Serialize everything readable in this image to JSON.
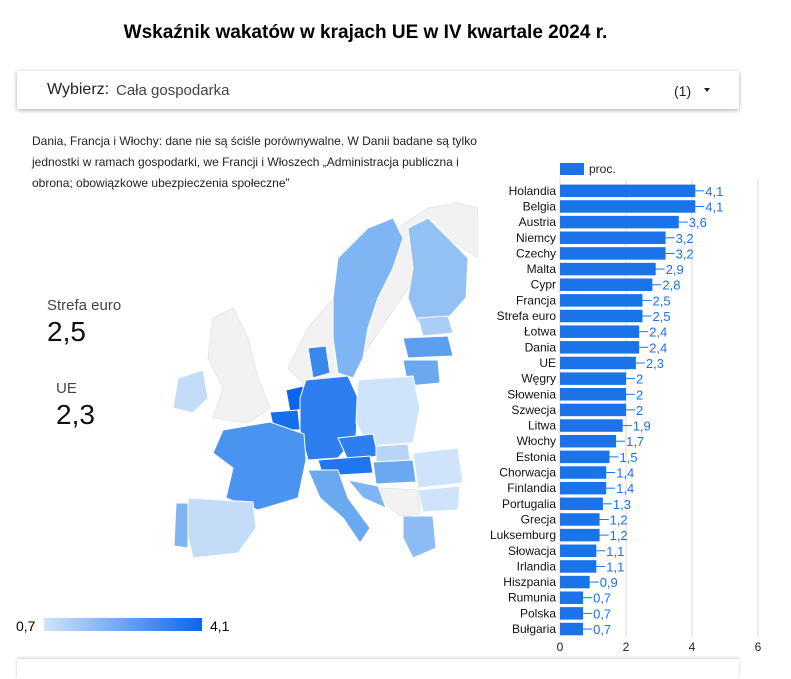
{
  "header": {
    "title": "Wskaźnik wakatów w krajach UE w IV kwartale 2024 r."
  },
  "filter": {
    "label": "Wybierz:",
    "value": "Cała gospodarka",
    "count": "(1)"
  },
  "note": "Dania, Francja i Włochy: dane nie są ściśle porównywalne. W Danii badane są tylko jednostki w ramach gospodarki, we Francji i Włoszech „Administracja publiczna i obrona; obowiązkowe ubezpieczenia społeczne”",
  "kpis": {
    "eurozone": {
      "label": "Strefa euro",
      "value": "2,5"
    },
    "eu": {
      "label": "UE",
      "value": "2,3"
    }
  },
  "map_legend": {
    "min": "0,7",
    "max": "4,1"
  },
  "colors": {
    "bar": "#1a73e8",
    "label": "#1a73e8",
    "legend_low": "#cfe4fb",
    "legend_high": "#0a66ee"
  },
  "chart_data": {
    "type": "bar",
    "orientation": "horizontal",
    "legend": "proc.",
    "categories": [
      "Holandia",
      "Belgia",
      "Austria",
      "Niemcy",
      "Czechy",
      "Malta",
      "Cypr",
      "Francja",
      "Strefa euro",
      "Łotwa",
      "Dania",
      "UE",
      "Węgry",
      "Słowenia",
      "Szwecja",
      "Litwa",
      "Włochy",
      "Estonia",
      "Chorwacja",
      "Finlandia",
      "Portugalia",
      "Grecja",
      "Luksemburg",
      "Słowacja",
      "Irlandia",
      "Hiszpania",
      "Rumunia",
      "Polska",
      "Bułgaria"
    ],
    "values": [
      4.1,
      4.1,
      3.6,
      3.2,
      3.2,
      2.9,
      2.8,
      2.5,
      2.5,
      2.4,
      2.4,
      2.3,
      2,
      2,
      2,
      1.9,
      1.7,
      1.5,
      1.4,
      1.4,
      1.3,
      1.2,
      1.2,
      1.1,
      1.1,
      0.9,
      0.7,
      0.7,
      0.7
    ],
    "labels": [
      "4,1",
      "4,1",
      "3,6",
      "3,2",
      "3,2",
      "2,9",
      "2,8",
      "2,5",
      "2,5",
      "2,4",
      "2,4",
      "2,3",
      "2",
      "2",
      "2",
      "1,9",
      "1,7",
      "1,5",
      "1,4",
      "1,4",
      "1,3",
      "1,2",
      "1,2",
      "1,1",
      "1,1",
      "0,9",
      "0,7",
      "0,7",
      "0,7"
    ],
    "xlim": [
      0,
      6
    ],
    "xticks": [
      "0",
      "2",
      "4",
      "6"
    ],
    "grid": true
  }
}
